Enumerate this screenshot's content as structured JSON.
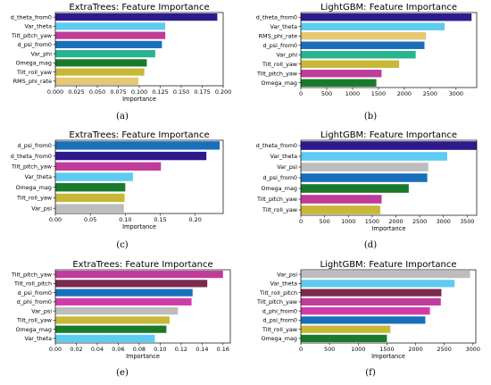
{
  "colors": {
    "d_theta_from0": "#2e1a8c",
    "Var_theta": "#5ecbf0",
    "Tilt_pitch_yaw": "#c03c9a",
    "d_psi_from0": "#1a6fba",
    "Var_phi": "#27b48e",
    "Omega_mag": "#1a7a2b",
    "Tilt_roll_yaw": "#c8b838",
    "RMS_phi_rate": "#e6c870",
    "Var_psi": "#bdbdbd",
    "Tilt_roll_pitch": "#7a2a4e",
    "d_phi_from0": "#d03ca8"
  },
  "chart_data": [
    {
      "type": "bar",
      "orientation": "horizontal",
      "panel_label": "(a)",
      "title": "ExtraTrees: Feature Importance",
      "xlabel": "Importance",
      "xlim": [
        0,
        0.2
      ],
      "xticks": [
        "0.000",
        "0.025",
        "0.050",
        "0.075",
        "0.100",
        "0.125",
        "0.150",
        "0.175",
        "0.200"
      ],
      "categories": [
        "d_theta_from0",
        "Var_theta",
        "Tilt_pitch_yaw",
        "d_psi_from0",
        "Var_phi",
        "Omega_mag",
        "Tilt_roll_yaw",
        "RMS_phi_rate"
      ],
      "values": [
        0.193,
        0.131,
        0.131,
        0.127,
        0.119,
        0.109,
        0.106,
        0.099
      ]
    },
    {
      "type": "bar",
      "orientation": "horizontal",
      "panel_label": "(b)",
      "title": "LightGBM: Feature Importance",
      "xlabel": "",
      "xlim": [
        0,
        3400
      ],
      "xticks": [
        "0",
        "500",
        "1000",
        "1500",
        "2000",
        "2500",
        "3000"
      ],
      "categories": [
        "d_theta_from0",
        "Var_theta",
        "RMS_phi_rate",
        "d_psi_from0",
        "Var_phi",
        "Tilt_roll_yaw",
        "Tilt_pitch_yaw",
        "Omega_mag"
      ],
      "values": [
        3300,
        2780,
        2420,
        2390,
        2220,
        1900,
        1560,
        1460
      ]
    },
    {
      "type": "bar",
      "orientation": "horizontal",
      "panel_label": "(c)",
      "title": "ExtraTrees: Feature Importance",
      "xlabel": "Importance",
      "xlim": [
        0,
        0.24
      ],
      "xticks": [
        "0.00",
        "0.05",
        "0.10",
        "0.15",
        "0.20"
      ],
      "categories": [
        "d_psi_from0",
        "d_theta_from0",
        "Tilt_pitch_yaw",
        "Var_theta",
        "Omega_mag",
        "Tilt_roll_yaw",
        "Var_psi"
      ],
      "values": [
        0.235,
        0.216,
        0.151,
        0.111,
        0.1,
        0.099,
        0.098
      ]
    },
    {
      "type": "bar",
      "orientation": "horizontal",
      "panel_label": "(d)",
      "title": "LightGBM: Feature Importance",
      "xlabel": "Importance",
      "xlim": [
        0,
        3700
      ],
      "xticks": [
        "0",
        "500",
        "1000",
        "1500",
        "2000",
        "2500",
        "3000",
        "3500"
      ],
      "categories": [
        "d_theta_from0",
        "Var_theta",
        "Var_psi",
        "d_psi_from0",
        "Omega_mag",
        "Tilt_pitch_yaw",
        "Tilt_roll_yaw"
      ],
      "values": [
        3700,
        3080,
        2680,
        2660,
        2270,
        1700,
        1670
      ]
    },
    {
      "type": "bar",
      "orientation": "horizontal",
      "panel_label": "(e)",
      "title": "ExtraTrees: Feature Importance",
      "xlabel": "Importance",
      "xlim": [
        0,
        0.167
      ],
      "xticks": [
        "0.00",
        "0.02",
        "0.04",
        "0.06",
        "0.08",
        "0.10",
        "0.12",
        "0.14",
        "0.16"
      ],
      "categories": [
        "Tilt_pitch_yaw",
        "Tilt_roll_pitch",
        "d_psi_from0",
        "d_phi_from0",
        "Var_psi",
        "Tilt_roll_yaw",
        "Omega_mag",
        "Var_theta"
      ],
      "values": [
        0.16,
        0.145,
        0.131,
        0.13,
        0.117,
        0.109,
        0.106,
        0.095
      ]
    },
    {
      "type": "bar",
      "orientation": "horizontal",
      "panel_label": "(f)",
      "title": "LightGBM: Feature Importance",
      "xlabel": "Importance",
      "xlim": [
        0,
        3050
      ],
      "xticks": [
        "0",
        "500",
        "1000",
        "1500",
        "2000",
        "2500",
        "3000"
      ],
      "categories": [
        "Var_psi",
        "Var_theta",
        "Tilt_roll_pitch",
        "Tilt_pitch_yaw",
        "d_phi_from0",
        "d_psi_from0",
        "Tilt_roll_yaw",
        "Omega_mag"
      ],
      "values": [
        2950,
        2680,
        2450,
        2440,
        2250,
        2170,
        1560,
        1500
      ]
    }
  ]
}
